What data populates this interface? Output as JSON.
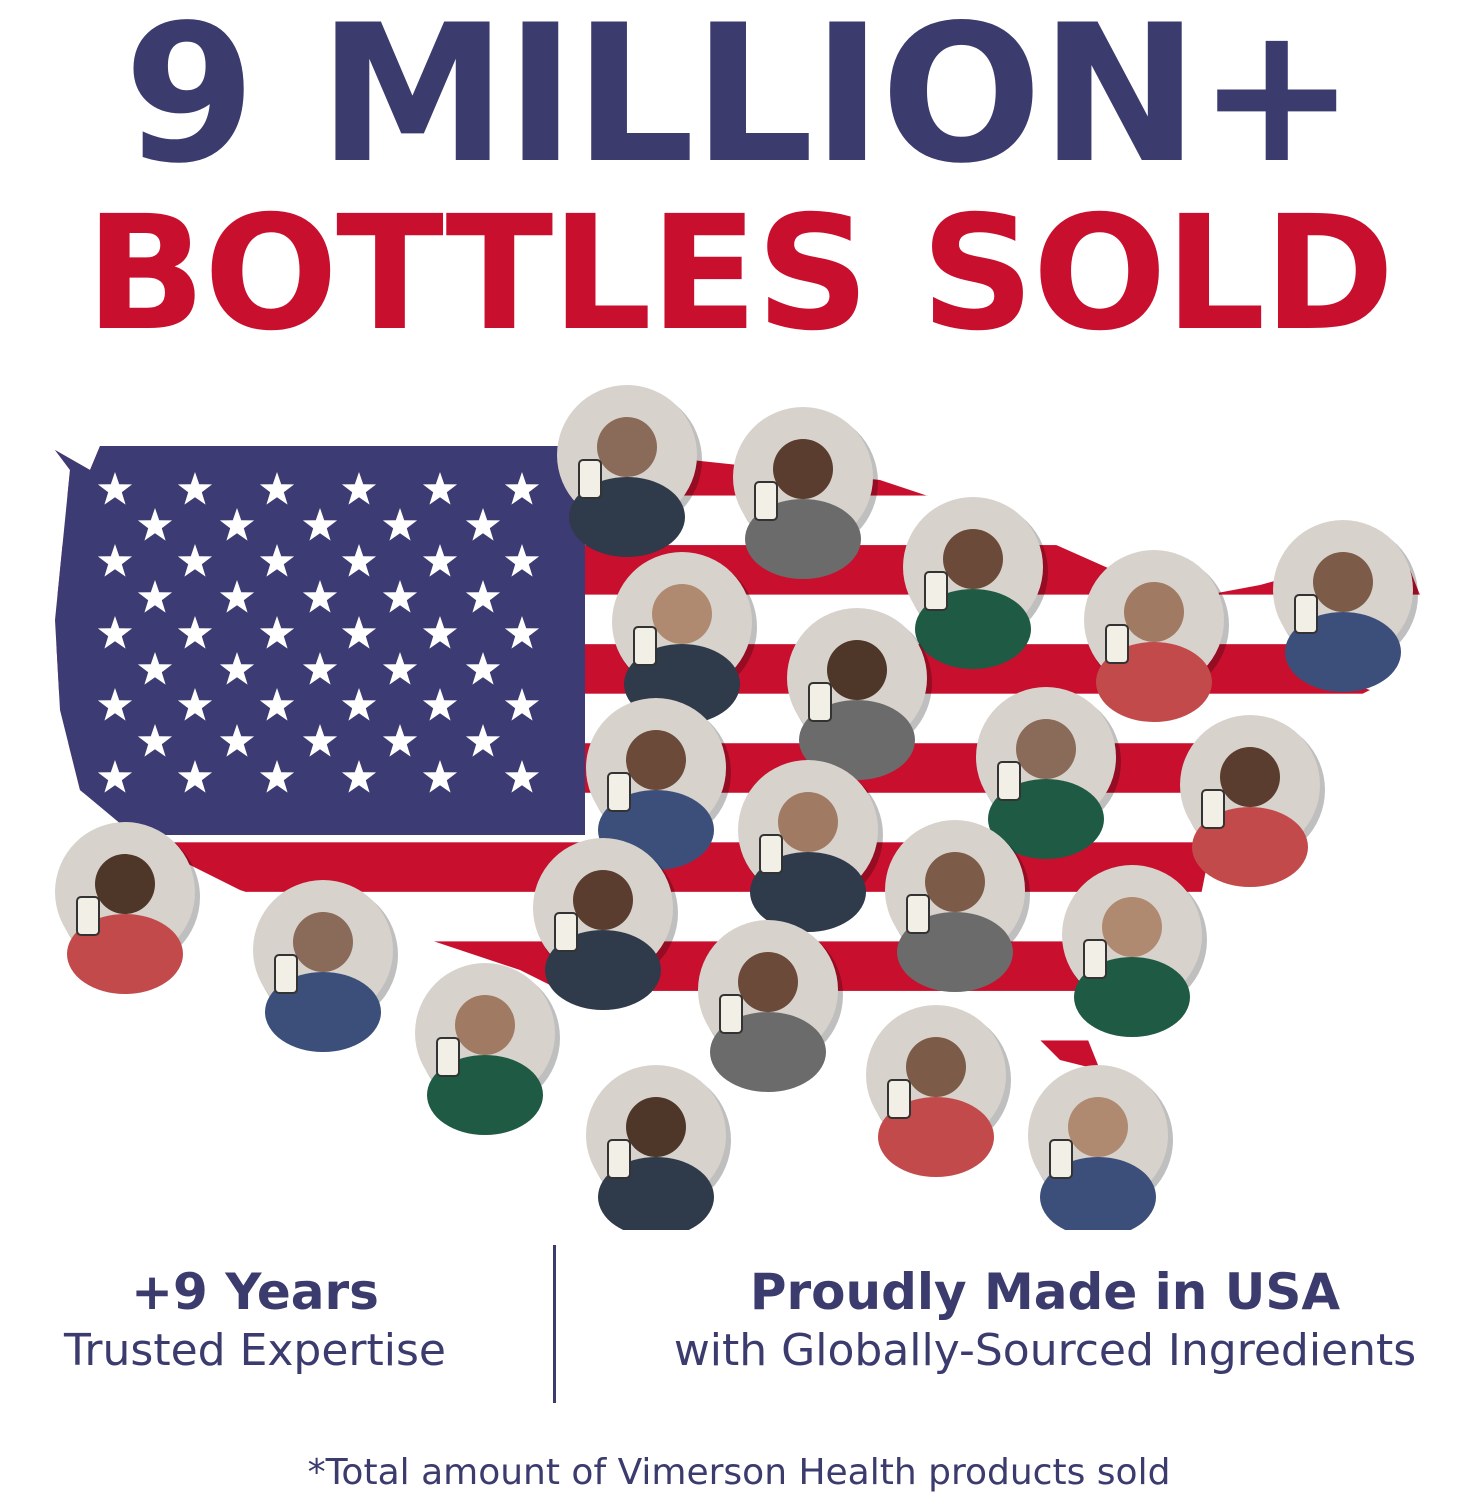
{
  "headline": {
    "line1": "9 MILLION+",
    "line2": "BOTTLES SOLD"
  },
  "colors": {
    "navy": "#3b3b6e",
    "red": "#c8102e",
    "flag_blue": "#3d3b74",
    "white": "#ffffff"
  },
  "map": {
    "description_icon": "usa-flag-map",
    "customer_photo_count": 21
  },
  "stats": [
    {
      "title": "+9 Years",
      "subtitle": "Trusted Expertise"
    },
    {
      "title": "Proudly Made in USA",
      "subtitle": "with Globally-Sourced Ingredients"
    }
  ],
  "footnote": "*Total amount of Vimerson Health products sold"
}
